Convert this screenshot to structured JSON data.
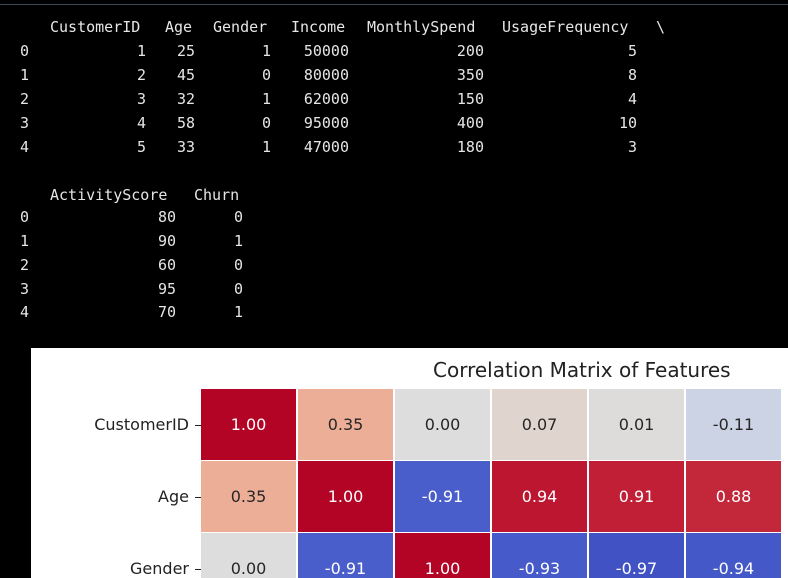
{
  "console": {
    "table1": {
      "header": {
        "CustomerID": "CustomerID",
        "Age": "Age",
        "Gender": "Gender",
        "Income": "Income",
        "MonthlySpend": "MonthlySpend",
        "UsageFrequency": "UsageFrequency",
        "continuation": "\\"
      },
      "rows": [
        {
          "idx": "0",
          "CustomerID": "1",
          "Age": "25",
          "Gender": "1",
          "Income": "50000",
          "MonthlySpend": "200",
          "UsageFrequency": "5"
        },
        {
          "idx": "1",
          "CustomerID": "2",
          "Age": "45",
          "Gender": "0",
          "Income": "80000",
          "MonthlySpend": "350",
          "UsageFrequency": "8"
        },
        {
          "idx": "2",
          "CustomerID": "3",
          "Age": "32",
          "Gender": "1",
          "Income": "62000",
          "MonthlySpend": "150",
          "UsageFrequency": "4"
        },
        {
          "idx": "3",
          "CustomerID": "4",
          "Age": "58",
          "Gender": "0",
          "Income": "95000",
          "MonthlySpend": "400",
          "UsageFrequency": "10"
        },
        {
          "idx": "4",
          "CustomerID": "5",
          "Age": "33",
          "Gender": "1",
          "Income": "47000",
          "MonthlySpend": "180",
          "UsageFrequency": "3"
        }
      ]
    },
    "table2": {
      "header": {
        "ActivityScore": "ActivityScore",
        "Churn": "Churn"
      },
      "rows": [
        {
          "idx": "0",
          "ActivityScore": "80",
          "Churn": "0"
        },
        {
          "idx": "1",
          "ActivityScore": "90",
          "Churn": "1"
        },
        {
          "idx": "2",
          "ActivityScore": "60",
          "Churn": "0"
        },
        {
          "idx": "3",
          "ActivityScore": "95",
          "Churn": "0"
        },
        {
          "idx": "4",
          "ActivityScore": "70",
          "Churn": "1"
        }
      ]
    }
  },
  "chart_data": {
    "type": "heatmap",
    "title": "Correlation Matrix of Features",
    "row_labels": [
      "CustomerID",
      "Age",
      "Gender"
    ],
    "values": [
      [
        "1.00",
        "0.35",
        "0.00",
        "0.07",
        "0.01",
        "-0.11"
      ],
      [
        "0.35",
        "1.00",
        "-0.91",
        "0.94",
        "0.91",
        "0.88"
      ],
      [
        "0.00",
        "-0.91",
        "1.00",
        "-0.93",
        "-0.97",
        "-0.94"
      ]
    ],
    "colormap": "coolwarm",
    "vmin": -1,
    "vmax": 1
  }
}
